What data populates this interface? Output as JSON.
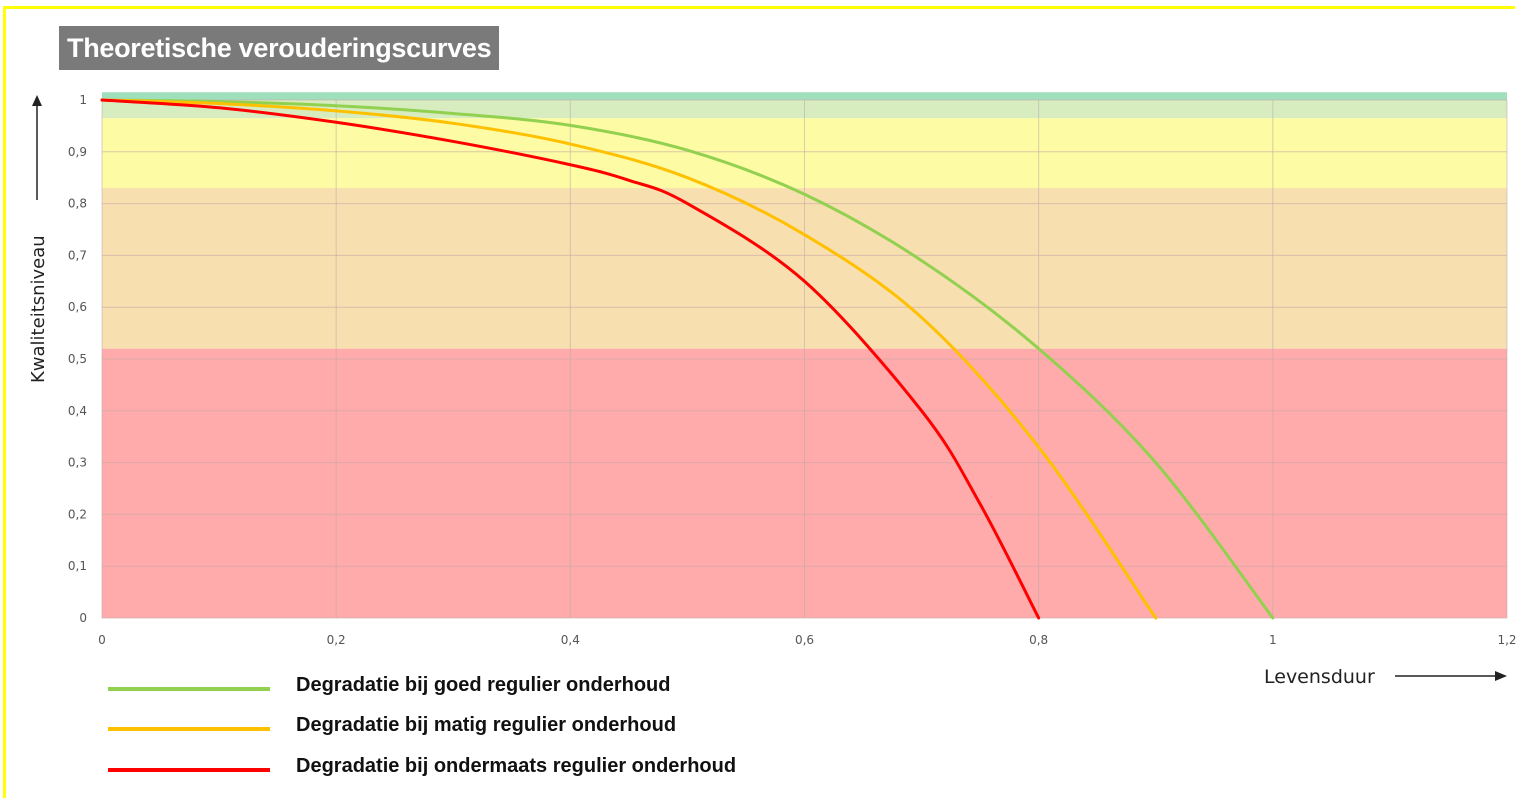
{
  "chart_data": {
    "type": "line",
    "title": "Theoretische verouderingscurves",
    "xlabel": "Levensduur",
    "ylabel": "Kwaliteitsniveau",
    "xlim": [
      0,
      1.2
    ],
    "ylim": [
      0,
      1
    ],
    "x_ticks": [
      "0",
      "0,2",
      "0,4",
      "0,6",
      "0,8",
      "1",
      "1,2"
    ],
    "y_ticks": [
      "0",
      "0,1",
      "0,2",
      "0,3",
      "0,4",
      "0,5",
      "0,6",
      "0,7",
      "0,8",
      "0,9",
      "1"
    ],
    "grid": true,
    "legend_position": "bottom-left",
    "bands": [
      {
        "from": 0,
        "to": 0.52,
        "color": "#ffabab"
      },
      {
        "from": 0.52,
        "to": 0.83,
        "color": "#f7dfb0"
      },
      {
        "from": 0.83,
        "to": 0.965,
        "color": "#fdfba4"
      },
      {
        "from": 0.965,
        "to": 1.0,
        "color": "#d7edc0"
      },
      {
        "from": 1.0,
        "to": 1.015,
        "color": "#9fdfbb"
      }
    ],
    "series": [
      {
        "name": "Degradatie bij goed regulier onderhoud",
        "color": "#92d050",
        "x": [
          0,
          0.1,
          0.2,
          0.3,
          0.4,
          0.5,
          0.6,
          0.7,
          0.8,
          0.9,
          1.0
        ],
        "y": [
          1,
          0.997,
          0.989,
          0.974,
          0.951,
          0.903,
          0.818,
          0.69,
          0.52,
          0.3,
          0
        ]
      },
      {
        "name": "Degradatie bij matig regulier onderhoud",
        "color": "#ffc000",
        "x": [
          0,
          0.1,
          0.2,
          0.3,
          0.4,
          0.5,
          0.6,
          0.7,
          0.8,
          0.9
        ],
        "y": [
          1,
          0.993,
          0.979,
          0.955,
          0.915,
          0.85,
          0.74,
          0.58,
          0.33,
          0
        ]
      },
      {
        "name": "Degradatie bij ondermaats regulier onderhoud",
        "color": "#ff0000",
        "x": [
          0,
          0.1,
          0.2,
          0.3,
          0.4,
          0.45,
          0.5,
          0.6,
          0.7,
          0.75,
          0.8
        ],
        "y": [
          1,
          0.985,
          0.957,
          0.92,
          0.875,
          0.845,
          0.8,
          0.65,
          0.4,
          0.22,
          0
        ]
      }
    ]
  }
}
